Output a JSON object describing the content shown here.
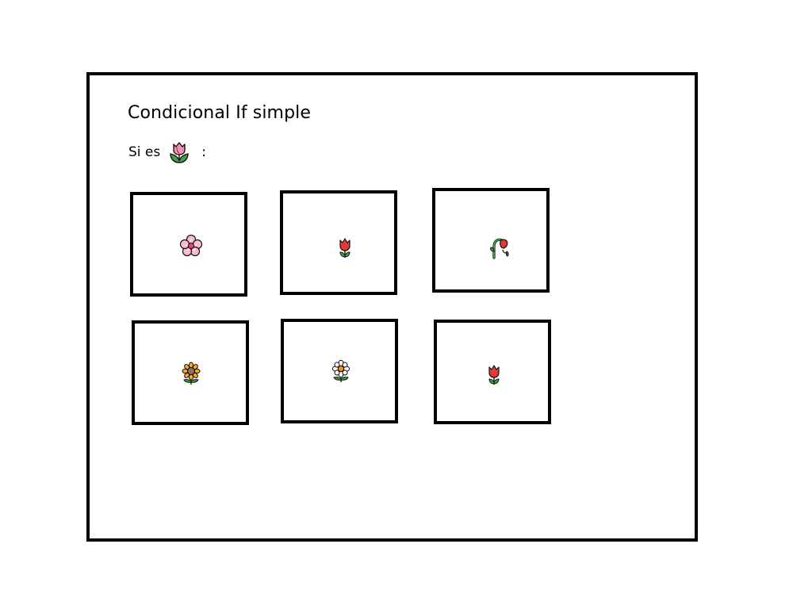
{
  "page": {
    "title": "Condicional If simple",
    "condition": {
      "prefix": "Si es",
      "target_icon": "tulip-icon",
      "suffix": ":"
    }
  },
  "cards": [
    {
      "icon": "cherry-blossom-icon"
    },
    {
      "icon": "red-tulip-icon"
    },
    {
      "icon": "wilted-rose-icon"
    },
    {
      "icon": "sunflower-icon"
    },
    {
      "icon": "white-blossom-icon"
    },
    {
      "icon": "red-tulip-icon"
    }
  ],
  "colors": {
    "border": "#000000",
    "background": "#ffffff",
    "tulip_pink": "#f48fb1",
    "tulip_red": "#e53935",
    "leaf_green": "#43a047",
    "sunflower_yellow": "#f9a825"
  }
}
